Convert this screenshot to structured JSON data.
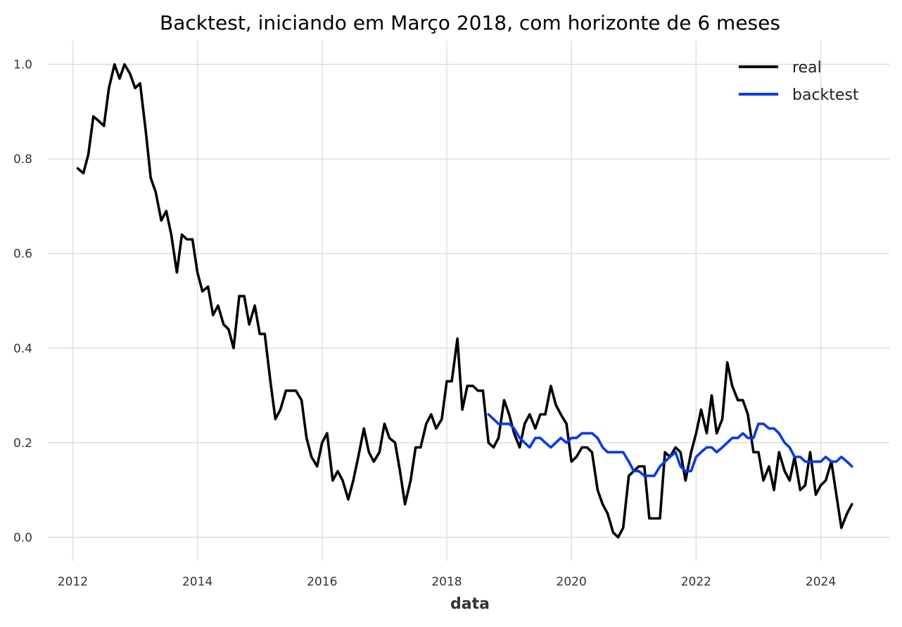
{
  "chart_data": {
    "type": "line",
    "title": "Backtest, iniciando em Março 2018, com horizonte de 6 meses",
    "xlabel": "data",
    "ylabel": "",
    "xlim": [
      2011.6,
      2025.1
    ],
    "ylim": [
      -0.05,
      1.05
    ],
    "xticks": [
      2012,
      2014,
      2016,
      2018,
      2020,
      2022,
      2024
    ],
    "xtick_labels": [
      "2012",
      "2014",
      "2016",
      "2018",
      "2020",
      "2022",
      "2024"
    ],
    "yticks": [
      0.0,
      0.2,
      0.4,
      0.6,
      0.8,
      1.0
    ],
    "ytick_labels": [
      "0.0",
      "0.2",
      "0.4",
      "0.6",
      "0.8",
      "1.0"
    ],
    "grid": true,
    "legend_position": "top-right",
    "series": [
      {
        "name": "real",
        "color": "#000000",
        "x": [
          2012.08,
          2012.17,
          2012.25,
          2012.33,
          2012.42,
          2012.5,
          2012.58,
          2012.67,
          2012.75,
          2012.83,
          2012.92,
          2013.0,
          2013.08,
          2013.17,
          2013.25,
          2013.33,
          2013.42,
          2013.5,
          2013.58,
          2013.67,
          2013.75,
          2013.83,
          2013.92,
          2014.0,
          2014.08,
          2014.17,
          2014.25,
          2014.33,
          2014.42,
          2014.5,
          2014.58,
          2014.67,
          2014.75,
          2014.83,
          2014.92,
          2015.0,
          2015.08,
          2015.17,
          2015.25,
          2015.33,
          2015.42,
          2015.5,
          2015.58,
          2015.67,
          2015.75,
          2015.83,
          2015.92,
          2016.0,
          2016.08,
          2016.17,
          2016.25,
          2016.33,
          2016.42,
          2016.5,
          2016.58,
          2016.67,
          2016.75,
          2016.83,
          2016.92,
          2017.0,
          2017.08,
          2017.17,
          2017.25,
          2017.33,
          2017.42,
          2017.5,
          2017.58,
          2017.67,
          2017.75,
          2017.83,
          2017.92,
          2018.0,
          2018.08,
          2018.17,
          2018.25,
          2018.33,
          2018.42,
          2018.5,
          2018.58,
          2018.67,
          2018.75,
          2018.83,
          2018.92,
          2019.0,
          2019.08,
          2019.17,
          2019.25,
          2019.33,
          2019.42,
          2019.5,
          2019.58,
          2019.67,
          2019.75,
          2019.83,
          2019.92,
          2020.0,
          2020.08,
          2020.17,
          2020.25,
          2020.33,
          2020.42,
          2020.5,
          2020.58,
          2020.67,
          2020.75,
          2020.83,
          2020.92,
          2021.0,
          2021.08,
          2021.17,
          2021.25,
          2021.33,
          2021.42,
          2021.5,
          2021.58,
          2021.67,
          2021.75,
          2021.83,
          2021.92,
          2022.0,
          2022.08,
          2022.17,
          2022.25,
          2022.33,
          2022.42,
          2022.5,
          2022.58,
          2022.67,
          2022.75,
          2022.83,
          2022.92,
          2023.0,
          2023.08,
          2023.17,
          2023.25,
          2023.33,
          2023.42,
          2023.5,
          2023.58,
          2023.67,
          2023.75,
          2023.83,
          2023.92,
          2024.0,
          2024.08,
          2024.17,
          2024.25,
          2024.33,
          2024.42,
          2024.5
        ],
        "y": [
          0.78,
          0.77,
          0.81,
          0.89,
          0.88,
          0.87,
          0.95,
          1.0,
          0.97,
          1.0,
          0.98,
          0.95,
          0.96,
          0.86,
          0.76,
          0.73,
          0.67,
          0.69,
          0.64,
          0.56,
          0.64,
          0.63,
          0.63,
          0.56,
          0.52,
          0.53,
          0.47,
          0.49,
          0.45,
          0.44,
          0.4,
          0.51,
          0.51,
          0.45,
          0.49,
          0.43,
          0.43,
          0.33,
          0.25,
          0.27,
          0.31,
          0.31,
          0.31,
          0.29,
          0.21,
          0.17,
          0.15,
          0.2,
          0.22,
          0.12,
          0.14,
          0.12,
          0.08,
          0.12,
          0.17,
          0.23,
          0.18,
          0.16,
          0.18,
          0.24,
          0.21,
          0.2,
          0.14,
          0.07,
          0.12,
          0.19,
          0.19,
          0.24,
          0.26,
          0.23,
          0.25,
          0.33,
          0.33,
          0.42,
          0.27,
          0.32,
          0.32,
          0.31,
          0.31,
          0.2,
          0.19,
          0.21,
          0.29,
          0.26,
          0.22,
          0.19,
          0.24,
          0.26,
          0.23,
          0.26,
          0.26,
          0.32,
          0.28,
          0.26,
          0.24,
          0.16,
          0.17,
          0.19,
          0.19,
          0.18,
          0.1,
          0.07,
          0.05,
          0.01,
          0.0,
          0.02,
          0.13,
          0.14,
          0.15,
          0.15,
          0.04,
          0.04,
          0.04,
          0.18,
          0.17,
          0.19,
          0.18,
          0.12,
          0.18,
          0.22,
          0.27,
          0.22,
          0.3,
          0.22,
          0.25,
          0.37,
          0.32,
          0.29,
          0.29,
          0.26,
          0.18,
          0.18,
          0.12,
          0.15,
          0.1,
          0.18,
          0.14,
          0.12,
          0.17,
          0.1,
          0.11,
          0.18,
          0.09,
          0.11,
          0.12,
          0.16,
          0.09,
          0.02,
          0.05,
          0.07
        ]
      },
      {
        "name": "backtest",
        "color": "#0039ff",
        "x": [
          2018.67,
          2018.75,
          2018.83,
          2018.92,
          2019.0,
          2019.08,
          2019.17,
          2019.25,
          2019.33,
          2019.42,
          2019.5,
          2019.58,
          2019.67,
          2019.75,
          2019.83,
          2019.92,
          2020.0,
          2020.08,
          2020.17,
          2020.25,
          2020.33,
          2020.42,
          2020.5,
          2020.58,
          2020.67,
          2020.75,
          2020.83,
          2020.92,
          2021.0,
          2021.08,
          2021.17,
          2021.25,
          2021.33,
          2021.42,
          2021.5,
          2021.58,
          2021.67,
          2021.75,
          2021.83,
          2021.92,
          2022.0,
          2022.08,
          2022.17,
          2022.25,
          2022.33,
          2022.42,
          2022.5,
          2022.58,
          2022.67,
          2022.75,
          2022.83,
          2022.92,
          2023.0,
          2023.08,
          2023.17,
          2023.25,
          2023.33,
          2023.42,
          2023.5,
          2023.58,
          2023.67,
          2023.75,
          2023.83,
          2023.92,
          2024.0,
          2024.08,
          2024.17,
          2024.25,
          2024.33,
          2024.42,
          2024.5
        ],
        "y": [
          0.26,
          0.25,
          0.24,
          0.24,
          0.24,
          0.23,
          0.21,
          0.2,
          0.19,
          0.21,
          0.21,
          0.2,
          0.19,
          0.2,
          0.21,
          0.2,
          0.21,
          0.21,
          0.22,
          0.22,
          0.22,
          0.21,
          0.19,
          0.18,
          0.18,
          0.18,
          0.18,
          0.16,
          0.14,
          0.14,
          0.13,
          0.13,
          0.13,
          0.15,
          0.16,
          0.17,
          0.18,
          0.15,
          0.14,
          0.14,
          0.17,
          0.18,
          0.19,
          0.19,
          0.18,
          0.19,
          0.2,
          0.21,
          0.21,
          0.22,
          0.21,
          0.21,
          0.24,
          0.24,
          0.23,
          0.23,
          0.22,
          0.2,
          0.19,
          0.17,
          0.17,
          0.16,
          0.16,
          0.16,
          0.16,
          0.17,
          0.16,
          0.16,
          0.17,
          0.16,
          0.15
        ]
      }
    ]
  }
}
